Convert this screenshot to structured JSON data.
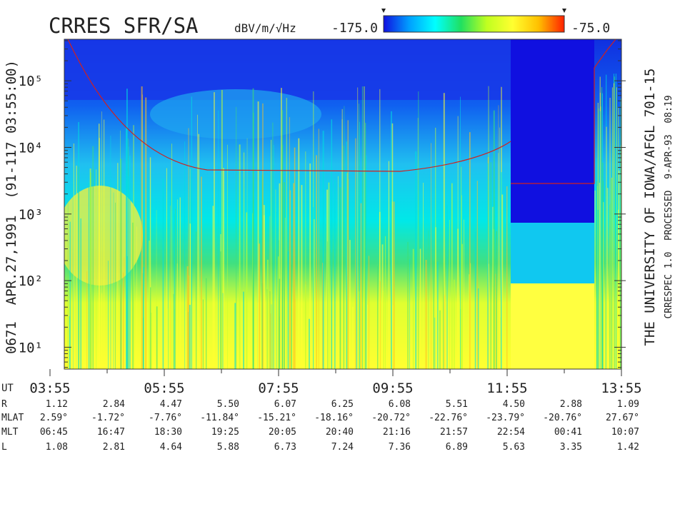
{
  "chart_data": {
    "type": "spectrogram",
    "title": "CRRES SFR/SA",
    "left_label": "0671  APR.27,1991  (91-117 03:55:00)",
    "right_label": "THE UNIVERSITY OF IOWA/AFGL 701-15",
    "right_sublabel": "CRRESPEC 1.0  PROCESSED  9-APR-93  08:19",
    "colorbar": {
      "label": "dBV/m/√Hz",
      "lim": [
        -175,
        -75
      ],
      "ticks": [
        {
          "value": -175,
          "label": "-175.0"
        },
        {
          "value": -75,
          "label": "-75.0"
        }
      ],
      "colors": [
        "#1010e0",
        "#00a0ff",
        "#00ffff",
        "#20e060",
        "#c0ff20",
        "#ffff30",
        "#ffc000",
        "#ff2000"
      ]
    },
    "ylog": true,
    "ylim": [
      4.7,
      420000
    ],
    "yticks": [
      {
        "value": 10,
        "label": "10¹"
      },
      {
        "value": 100,
        "label": "10²"
      },
      {
        "value": 1000,
        "label": "10³"
      },
      {
        "value": 10000,
        "label": "10⁴"
      },
      {
        "value": 100000,
        "label": "10⁵"
      }
    ],
    "xlim": [
      3.9167,
      13.9167
    ],
    "xticks": [
      {
        "value": 3.9167,
        "label": "03:55"
      },
      {
        "value": 5.9167,
        "label": "05:55"
      },
      {
        "value": 7.9167,
        "label": "07:55"
      },
      {
        "value": 9.9167,
        "label": "09:55"
      },
      {
        "value": 11.9167,
        "label": "11:55"
      },
      {
        "value": 13.9167,
        "label": "13:55"
      }
    ]
  },
  "ephemeris": {
    "ut_label": "UT",
    "rows": [
      {
        "label": "R",
        "values": [
          "1.12",
          "2.84",
          "4.47",
          "5.50",
          "6.07",
          "6.25",
          "6.08",
          "5.51",
          "4.50",
          "2.88",
          "1.09"
        ]
      },
      {
        "label": "MLAT",
        "values": [
          "2.59°",
          "-1.72°",
          "-7.76°",
          "-11.84°",
          "-15.21°",
          "-18.16°",
          "-20.72°",
          "-22.76°",
          "-23.79°",
          "-20.76°",
          "27.67°"
        ]
      },
      {
        "label": "MLT",
        "values": [
          "06:45",
          "16:47",
          "18:30",
          "19:25",
          "20:05",
          "20:40",
          "21:16",
          "21:57",
          "22:54",
          "00:41",
          "10:07"
        ]
      },
      {
        "label": "L",
        "values": [
          "1.08",
          "2.81",
          "4.64",
          "5.88",
          "6.73",
          "7.24",
          "7.36",
          "6.89",
          "5.63",
          "3.35",
          "1.42"
        ]
      }
    ]
  }
}
